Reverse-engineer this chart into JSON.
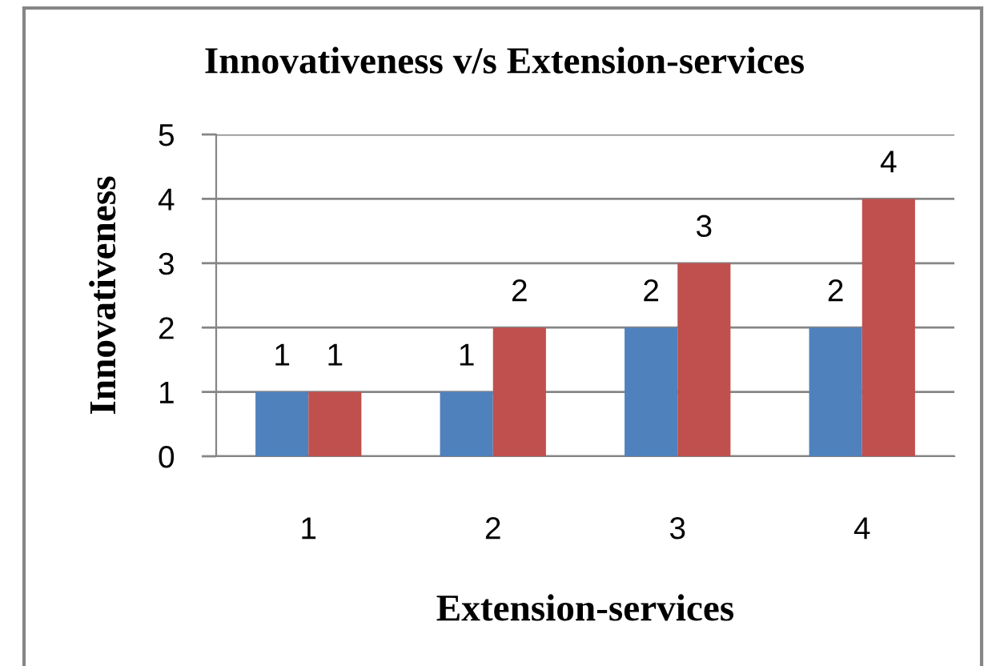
{
  "chart_data": {
    "type": "bar",
    "title": "Innovativeness v/s Extension-services",
    "xlabel": "Extension-services",
    "ylabel": "Innovativeness",
    "categories": [
      "1",
      "2",
      "3",
      "4"
    ],
    "series": [
      {
        "color": "#4f81bd",
        "values": [
          1,
          1,
          2,
          2
        ]
      },
      {
        "color": "#c0504d",
        "values": [
          1,
          2,
          3,
          4
        ]
      }
    ],
    "ylim": [
      0,
      5
    ],
    "yticks": [
      0,
      1,
      2,
      3,
      4,
      5
    ],
    "grid": "y",
    "data_labels": true
  }
}
